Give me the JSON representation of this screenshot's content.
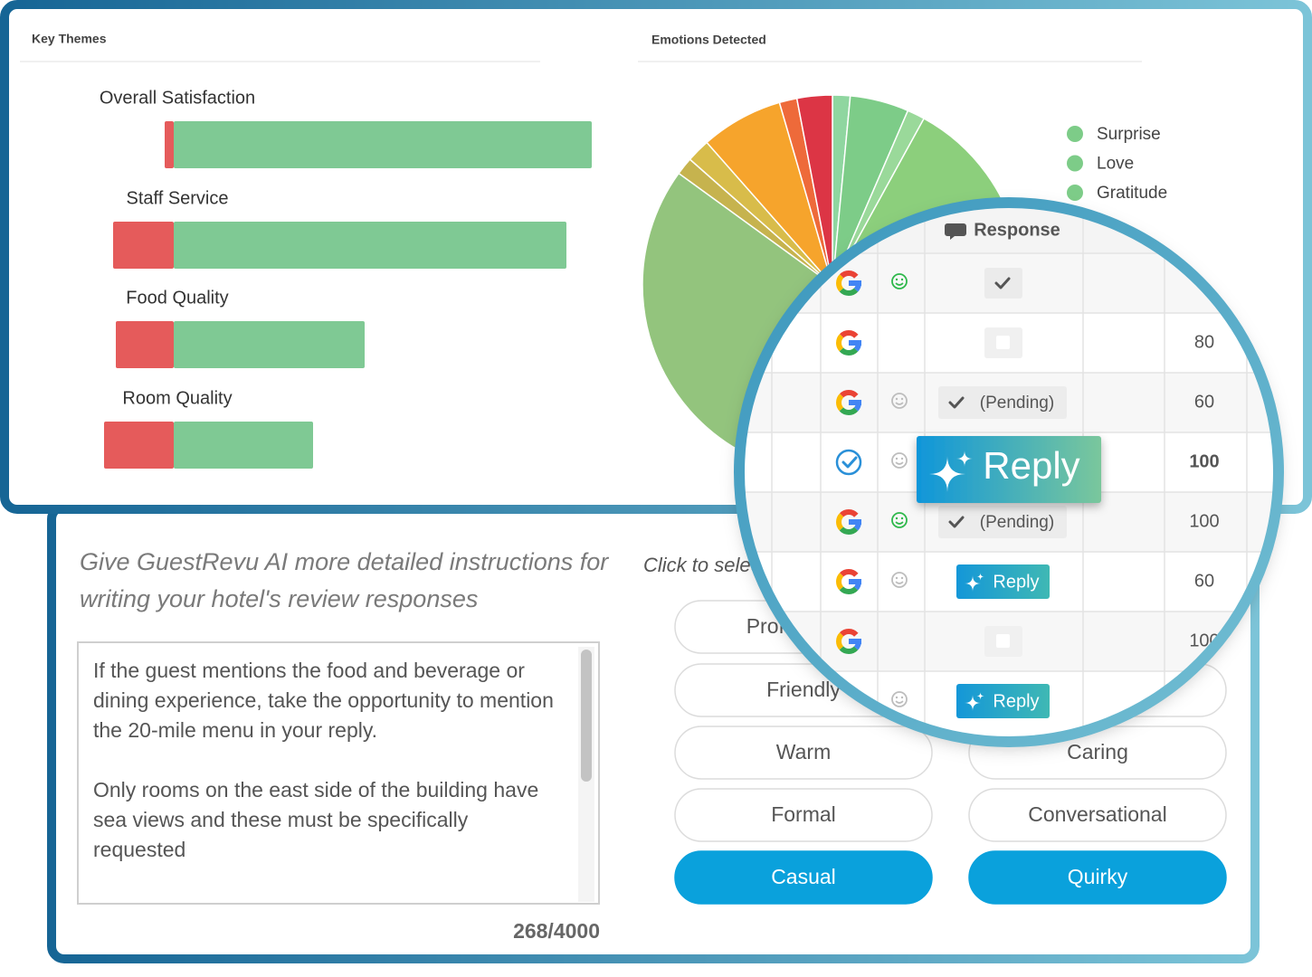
{
  "key_themes": {
    "title": "Key Themes",
    "themes": [
      {
        "label": "Overall Satisfaction",
        "negative": 10,
        "positive": 462
      },
      {
        "label": "Staff Service",
        "negative": 67,
        "positive": 434
      },
      {
        "label": "Food Quality",
        "negative": 64,
        "positive": 211
      },
      {
        "label": "Room Quality",
        "negative": 77,
        "positive": 154
      }
    ],
    "negative_color": "#e55b5b",
    "positive_color": "#7fc994"
  },
  "emotions": {
    "title": "Emotions Detected",
    "slices": [
      {
        "value": 1.5,
        "color": "#8fd6a0"
      },
      {
        "value": 5,
        "color": "#7dcc88"
      },
      {
        "value": 1.5,
        "color": "#9ad99a"
      },
      {
        "value": 30,
        "color": "#8ccf7c"
      },
      {
        "value": 47,
        "color": "#93c47d"
      },
      {
        "value": 1.5,
        "color": "#c6b34e"
      },
      {
        "value": 2,
        "color": "#d8bc4a"
      },
      {
        "value": 7,
        "color": "#f6a42c"
      },
      {
        "value": 1.5,
        "color": "#ee6a3a"
      },
      {
        "value": 3,
        "color": "#dc3545"
      }
    ],
    "legend": [
      {
        "label": "Surprise",
        "color": "#7dcc88"
      },
      {
        "label": "Love",
        "color": "#7dcc88"
      },
      {
        "label": "Gratitude",
        "color": "#7dcc88"
      }
    ]
  },
  "response_table": {
    "header": "Response",
    "rows": [
      {
        "source": "google",
        "sentiment": "positive",
        "response": "done"
      },
      {
        "source": "google",
        "response": "edit",
        "score": 80
      },
      {
        "source": "google",
        "sentiment": "neutral",
        "response": "pending",
        "response_label": "(Pending)",
        "score": 60
      },
      {
        "source": "chat",
        "sentiment": "neutral",
        "response": "reply",
        "response_label": "Reply",
        "score": 100,
        "highlight": true
      },
      {
        "source": "google",
        "sentiment": "positive",
        "response": "pending",
        "response_label": "(Pending)",
        "score": 100
      },
      {
        "source": "google",
        "sentiment": "neutral",
        "response": "reply",
        "response_label": "Reply",
        "score": 60
      },
      {
        "source": "google",
        "response": "edit",
        "score": 100
      },
      {
        "sentiment": "neutral",
        "response": "reply",
        "response_label": "Reply"
      }
    ]
  },
  "instructions": {
    "heading": "Give GuestRevu AI more detailed instructions for writing your hotel's review responses",
    "paragraphs": [
      "If the guest mentions the food and beverage or dining experience, take the opportunity to mention the 20-mile menu in your reply.",
      "Only rooms on the east side of the building have sea views and these must be specifically requested"
    ],
    "counter": "268/4000"
  },
  "tone": {
    "prompt": "Click to select",
    "options": [
      {
        "label": "Professional",
        "selected": false
      },
      {
        "label": "Friendly",
        "selected": false
      },
      {
        "label": "Warm",
        "selected": false
      },
      {
        "label": "Caring",
        "selected": false
      },
      {
        "label": "Formal",
        "selected": false
      },
      {
        "label": "Conversational",
        "selected": false
      },
      {
        "label": "Casual",
        "selected": true
      },
      {
        "label": "Quirky",
        "selected": true
      }
    ]
  }
}
